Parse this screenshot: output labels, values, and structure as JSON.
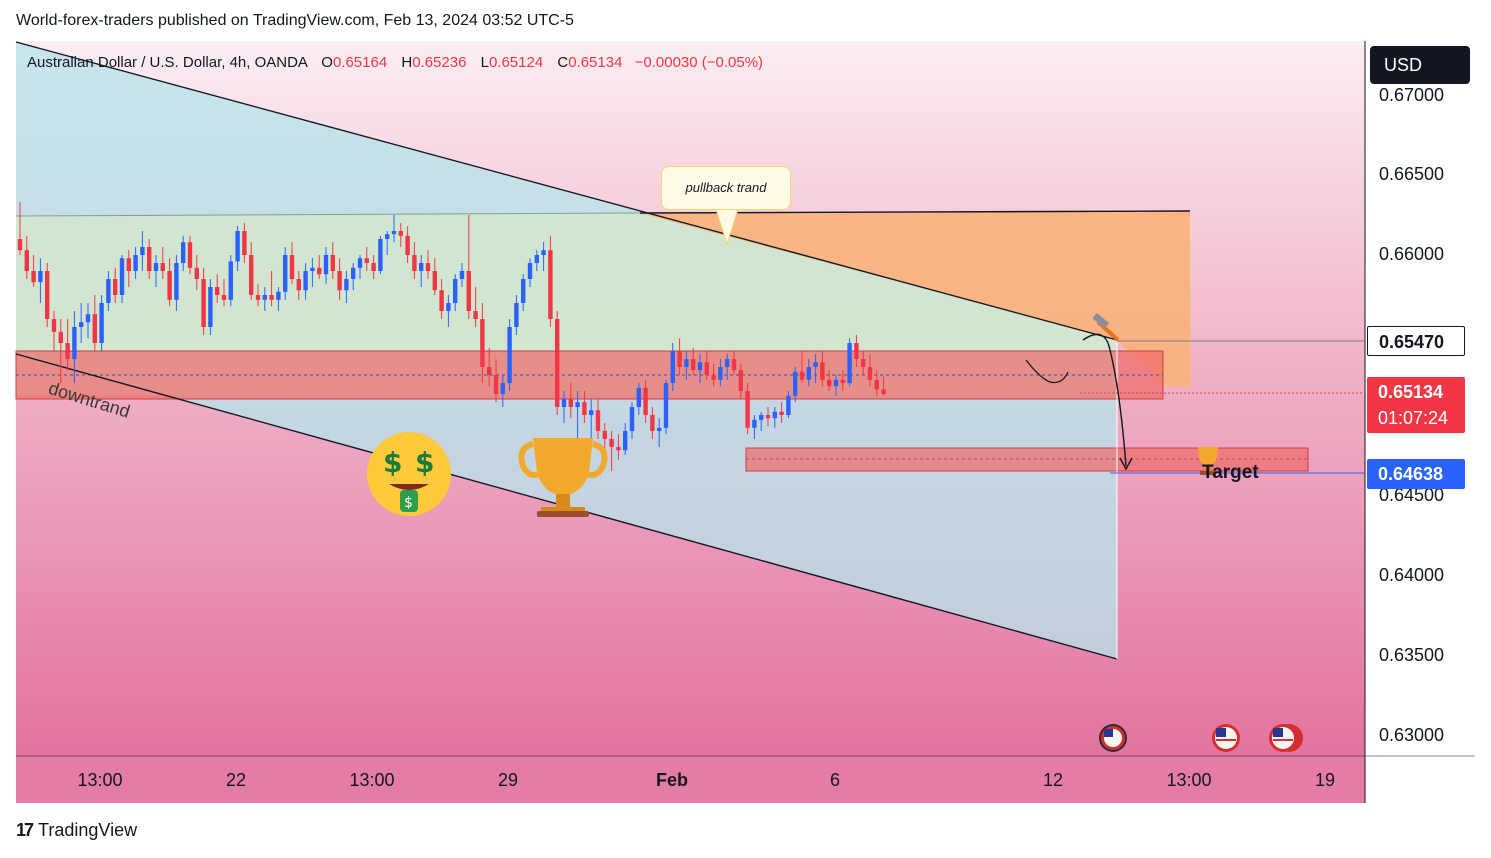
{
  "header": {
    "published_line": "World-forex-traders published on TradingView.com, Feb 13, 2024 03:52 UTC-5"
  },
  "legend": {
    "symbol": "Australian Dollar / U.S. Dollar, 4h, OANDA",
    "open_label": "O",
    "open": "0.65164",
    "high_label": "H",
    "high": "0.65236",
    "low_label": "L",
    "low": "0.65124",
    "close_label": "C",
    "close": "0.65134",
    "change": "−0.00030 (−0.05%)"
  },
  "currency_button": "USD",
  "price_axis": {
    "labels": [
      "0.67000",
      "0.66500",
      "0.66000",
      "0.64500",
      "0.64000",
      "0.63500",
      "0.63000"
    ],
    "tag_mark": {
      "value": "0.65470",
      "bg": "#ffffff",
      "fg": "#131722"
    },
    "tag_last": {
      "value": "0.65134",
      "countdown": "01:07:24",
      "bg": "#f23645",
      "fg": "#ffffff"
    },
    "tag_target": {
      "value": "0.64638",
      "bg": "#2962ff",
      "fg": "#ffffff"
    }
  },
  "time_axis": {
    "labels": [
      "13:00",
      "22",
      "13:00",
      "29",
      "Feb",
      "6",
      "12",
      "13:00",
      "19"
    ]
  },
  "annotations": {
    "callout": "pullback trand",
    "downtrend": "downtrand",
    "target": "Target"
  },
  "footer": {
    "logo": "17",
    "brand": "TradingView"
  },
  "colors": {
    "up": "#2962ff",
    "down": "#f23645",
    "background_pink": "#e882a6",
    "channel_fill": "#b2e6e8",
    "range_fill": "#cfe6c9",
    "orange_zone": "#f8b27c",
    "red_zone": "#f06e6e"
  },
  "chart_data": {
    "type": "candlestick",
    "symbol": "AUDUSD",
    "timeframe": "4h",
    "ylim": [
      0.6295,
      0.6715
    ],
    "candles": [
      {
        "o": 0.661,
        "h": 0.6633,
        "l": 0.66,
        "c": 0.6603
      },
      {
        "o": 0.6603,
        "h": 0.6612,
        "l": 0.6585,
        "c": 0.659
      },
      {
        "o": 0.659,
        "h": 0.66,
        "l": 0.658,
        "c": 0.6583
      },
      {
        "o": 0.6583,
        "h": 0.6598,
        "l": 0.657,
        "c": 0.659
      },
      {
        "o": 0.659,
        "h": 0.6595,
        "l": 0.6555,
        "c": 0.656
      },
      {
        "o": 0.656,
        "h": 0.6565,
        "l": 0.654,
        "c": 0.6552
      },
      {
        "o": 0.6552,
        "h": 0.656,
        "l": 0.652,
        "c": 0.6545
      },
      {
        "o": 0.6545,
        "h": 0.656,
        "l": 0.6528,
        "c": 0.6535
      },
      {
        "o": 0.6535,
        "h": 0.6565,
        "l": 0.652,
        "c": 0.6555
      },
      {
        "o": 0.6555,
        "h": 0.657,
        "l": 0.6545,
        "c": 0.6558
      },
      {
        "o": 0.6558,
        "h": 0.657,
        "l": 0.6548,
        "c": 0.6563
      },
      {
        "o": 0.6563,
        "h": 0.6575,
        "l": 0.654,
        "c": 0.6545
      },
      {
        "o": 0.6545,
        "h": 0.6575,
        "l": 0.654,
        "c": 0.657
      },
      {
        "o": 0.657,
        "h": 0.659,
        "l": 0.6565,
        "c": 0.6585
      },
      {
        "o": 0.6585,
        "h": 0.6592,
        "l": 0.657,
        "c": 0.6575
      },
      {
        "o": 0.6575,
        "h": 0.66,
        "l": 0.657,
        "c": 0.6598
      },
      {
        "o": 0.6598,
        "h": 0.6603,
        "l": 0.658,
        "c": 0.659
      },
      {
        "o": 0.659,
        "h": 0.6605,
        "l": 0.6585,
        "c": 0.66
      },
      {
        "o": 0.66,
        "h": 0.6615,
        "l": 0.659,
        "c": 0.6605
      },
      {
        "o": 0.6605,
        "h": 0.661,
        "l": 0.6585,
        "c": 0.659
      },
      {
        "o": 0.659,
        "h": 0.66,
        "l": 0.658,
        "c": 0.6595
      },
      {
        "o": 0.6595,
        "h": 0.6605,
        "l": 0.6585,
        "c": 0.659
      },
      {
        "o": 0.659,
        "h": 0.6598,
        "l": 0.6568,
        "c": 0.6572
      },
      {
        "o": 0.6572,
        "h": 0.66,
        "l": 0.6565,
        "c": 0.6595
      },
      {
        "o": 0.6595,
        "h": 0.6612,
        "l": 0.659,
        "c": 0.6608
      },
      {
        "o": 0.6608,
        "h": 0.6612,
        "l": 0.6588,
        "c": 0.6592
      },
      {
        "o": 0.6592,
        "h": 0.66,
        "l": 0.6578,
        "c": 0.6585
      },
      {
        "o": 0.6585,
        "h": 0.6592,
        "l": 0.655,
        "c": 0.6555
      },
      {
        "o": 0.6555,
        "h": 0.6585,
        "l": 0.655,
        "c": 0.658
      },
      {
        "o": 0.658,
        "h": 0.6588,
        "l": 0.657,
        "c": 0.6575
      },
      {
        "o": 0.6575,
        "h": 0.6585,
        "l": 0.6568,
        "c": 0.6572
      },
      {
        "o": 0.6572,
        "h": 0.66,
        "l": 0.6568,
        "c": 0.6596
      },
      {
        "o": 0.6596,
        "h": 0.6618,
        "l": 0.659,
        "c": 0.6615
      },
      {
        "o": 0.6615,
        "h": 0.662,
        "l": 0.6595,
        "c": 0.66
      },
      {
        "o": 0.66,
        "h": 0.6608,
        "l": 0.6572,
        "c": 0.6575
      },
      {
        "o": 0.6575,
        "h": 0.6582,
        "l": 0.6568,
        "c": 0.6572
      },
      {
        "o": 0.6572,
        "h": 0.658,
        "l": 0.6565,
        "c": 0.6575
      },
      {
        "o": 0.6575,
        "h": 0.659,
        "l": 0.6568,
        "c": 0.6572
      },
      {
        "o": 0.6572,
        "h": 0.658,
        "l": 0.6565,
        "c": 0.6577
      },
      {
        "o": 0.6577,
        "h": 0.6605,
        "l": 0.6572,
        "c": 0.66
      },
      {
        "o": 0.66,
        "h": 0.6608,
        "l": 0.6582,
        "c": 0.6585
      },
      {
        "o": 0.6585,
        "h": 0.659,
        "l": 0.6572,
        "c": 0.6578
      },
      {
        "o": 0.6578,
        "h": 0.6595,
        "l": 0.6572,
        "c": 0.659
      },
      {
        "o": 0.659,
        "h": 0.6598,
        "l": 0.658,
        "c": 0.6592
      },
      {
        "o": 0.6592,
        "h": 0.66,
        "l": 0.6585,
        "c": 0.6588
      },
      {
        "o": 0.6588,
        "h": 0.6605,
        "l": 0.6582,
        "c": 0.66
      },
      {
        "o": 0.66,
        "h": 0.6608,
        "l": 0.6585,
        "c": 0.659
      },
      {
        "o": 0.659,
        "h": 0.6598,
        "l": 0.6572,
        "c": 0.6578
      },
      {
        "o": 0.6578,
        "h": 0.659,
        "l": 0.657,
        "c": 0.6585
      },
      {
        "o": 0.6585,
        "h": 0.6595,
        "l": 0.6578,
        "c": 0.6592
      },
      {
        "o": 0.6592,
        "h": 0.66,
        "l": 0.6585,
        "c": 0.6598
      },
      {
        "o": 0.6598,
        "h": 0.6605,
        "l": 0.659,
        "c": 0.6595
      },
      {
        "o": 0.6595,
        "h": 0.66,
        "l": 0.6585,
        "c": 0.659
      },
      {
        "o": 0.659,
        "h": 0.6612,
        "l": 0.6588,
        "c": 0.661
      },
      {
        "o": 0.661,
        "h": 0.6615,
        "l": 0.66,
        "c": 0.6613
      },
      {
        "o": 0.6613,
        "h": 0.6625,
        "l": 0.6608,
        "c": 0.6615
      },
      {
        "o": 0.6615,
        "h": 0.662,
        "l": 0.6605,
        "c": 0.6612
      },
      {
        "o": 0.6612,
        "h": 0.6618,
        "l": 0.6595,
        "c": 0.66
      },
      {
        "o": 0.66,
        "h": 0.6608,
        "l": 0.6585,
        "c": 0.659
      },
      {
        "o": 0.659,
        "h": 0.66,
        "l": 0.658,
        "c": 0.6595
      },
      {
        "o": 0.6595,
        "h": 0.6603,
        "l": 0.6585,
        "c": 0.659
      },
      {
        "o": 0.659,
        "h": 0.6598,
        "l": 0.6575,
        "c": 0.6578
      },
      {
        "o": 0.6578,
        "h": 0.6585,
        "l": 0.656,
        "c": 0.6565
      },
      {
        "o": 0.6565,
        "h": 0.6575,
        "l": 0.6555,
        "c": 0.657
      },
      {
        "o": 0.657,
        "h": 0.6588,
        "l": 0.6565,
        "c": 0.6585
      },
      {
        "o": 0.6585,
        "h": 0.6595,
        "l": 0.658,
        "c": 0.659
      },
      {
        "o": 0.659,
        "h": 0.6625,
        "l": 0.656,
        "c": 0.6565
      },
      {
        "o": 0.6565,
        "h": 0.658,
        "l": 0.6555,
        "c": 0.656
      },
      {
        "o": 0.656,
        "h": 0.657,
        "l": 0.652,
        "c": 0.653
      },
      {
        "o": 0.653,
        "h": 0.6542,
        "l": 0.6518,
        "c": 0.6525
      },
      {
        "o": 0.6525,
        "h": 0.6535,
        "l": 0.6508,
        "c": 0.6513
      },
      {
        "o": 0.6513,
        "h": 0.6525,
        "l": 0.6505,
        "c": 0.652
      },
      {
        "o": 0.652,
        "h": 0.656,
        "l": 0.6515,
        "c": 0.6555
      },
      {
        "o": 0.6555,
        "h": 0.6575,
        "l": 0.655,
        "c": 0.657
      },
      {
        "o": 0.657,
        "h": 0.6588,
        "l": 0.6565,
        "c": 0.6585
      },
      {
        "o": 0.6585,
        "h": 0.6598,
        "l": 0.658,
        "c": 0.6595
      },
      {
        "o": 0.6595,
        "h": 0.6603,
        "l": 0.659,
        "c": 0.66
      },
      {
        "o": 0.66,
        "h": 0.6608,
        "l": 0.659,
        "c": 0.6603
      },
      {
        "o": 0.6603,
        "h": 0.6612,
        "l": 0.6555,
        "c": 0.656
      },
      {
        "o": 0.656,
        "h": 0.6565,
        "l": 0.65,
        "c": 0.6505
      },
      {
        "o": 0.6505,
        "h": 0.6515,
        "l": 0.6495,
        "c": 0.651
      },
      {
        "o": 0.651,
        "h": 0.652,
        "l": 0.6498,
        "c": 0.6505
      },
      {
        "o": 0.6505,
        "h": 0.6515,
        "l": 0.648,
        "c": 0.6508
      },
      {
        "o": 0.6508,
        "h": 0.6515,
        "l": 0.6495,
        "c": 0.65
      },
      {
        "o": 0.65,
        "h": 0.651,
        "l": 0.6485,
        "c": 0.6503
      },
      {
        "o": 0.6503,
        "h": 0.651,
        "l": 0.6485,
        "c": 0.649
      },
      {
        "o": 0.649,
        "h": 0.6495,
        "l": 0.6478,
        "c": 0.6485
      },
      {
        "o": 0.6485,
        "h": 0.649,
        "l": 0.6465,
        "c": 0.648
      },
      {
        "o": 0.648,
        "h": 0.6488,
        "l": 0.6472,
        "c": 0.6478
      },
      {
        "o": 0.6478,
        "h": 0.6495,
        "l": 0.6475,
        "c": 0.649
      },
      {
        "o": 0.649,
        "h": 0.6508,
        "l": 0.6485,
        "c": 0.6505
      },
      {
        "o": 0.6505,
        "h": 0.652,
        "l": 0.65,
        "c": 0.6517
      },
      {
        "o": 0.6517,
        "h": 0.6522,
        "l": 0.6495,
        "c": 0.65
      },
      {
        "o": 0.65,
        "h": 0.6505,
        "l": 0.6485,
        "c": 0.649
      },
      {
        "o": 0.649,
        "h": 0.6498,
        "l": 0.648,
        "c": 0.6492
      },
      {
        "o": 0.6492,
        "h": 0.6522,
        "l": 0.6488,
        "c": 0.652
      },
      {
        "o": 0.652,
        "h": 0.6545,
        "l": 0.6515,
        "c": 0.654
      },
      {
        "o": 0.654,
        "h": 0.6548,
        "l": 0.6525,
        "c": 0.653
      },
      {
        "o": 0.653,
        "h": 0.654,
        "l": 0.6522,
        "c": 0.6535
      },
      {
        "o": 0.6535,
        "h": 0.6542,
        "l": 0.6525,
        "c": 0.6528
      },
      {
        "o": 0.6528,
        "h": 0.6538,
        "l": 0.652,
        "c": 0.6533
      },
      {
        "o": 0.6533,
        "h": 0.654,
        "l": 0.6522,
        "c": 0.6525
      },
      {
        "o": 0.6525,
        "h": 0.6532,
        "l": 0.6518,
        "c": 0.6522
      },
      {
        "o": 0.6522,
        "h": 0.6535,
        "l": 0.6518,
        "c": 0.653
      },
      {
        "o": 0.653,
        "h": 0.6538,
        "l": 0.6522,
        "c": 0.6535
      },
      {
        "o": 0.6535,
        "h": 0.654,
        "l": 0.6525,
        "c": 0.6528
      },
      {
        "o": 0.6528,
        "h": 0.6532,
        "l": 0.651,
        "c": 0.6515
      },
      {
        "o": 0.6515,
        "h": 0.652,
        "l": 0.6488,
        "c": 0.6492
      },
      {
        "o": 0.6492,
        "h": 0.65,
        "l": 0.6485,
        "c": 0.6497
      },
      {
        "o": 0.6497,
        "h": 0.6502,
        "l": 0.649,
        "c": 0.65
      },
      {
        "o": 0.65,
        "h": 0.6505,
        "l": 0.6493,
        "c": 0.6498
      },
      {
        "o": 0.6498,
        "h": 0.6505,
        "l": 0.6492,
        "c": 0.6502
      },
      {
        "o": 0.6502,
        "h": 0.6508,
        "l": 0.6495,
        "c": 0.65
      },
      {
        "o": 0.65,
        "h": 0.6515,
        "l": 0.6498,
        "c": 0.6512
      },
      {
        "o": 0.6512,
        "h": 0.653,
        "l": 0.6508,
        "c": 0.6527
      },
      {
        "o": 0.6527,
        "h": 0.654,
        "l": 0.652,
        "c": 0.6522
      },
      {
        "o": 0.6522,
        "h": 0.6535,
        "l": 0.6518,
        "c": 0.653
      },
      {
        "o": 0.653,
        "h": 0.6538,
        "l": 0.652,
        "c": 0.6533
      },
      {
        "o": 0.6533,
        "h": 0.654,
        "l": 0.6518,
        "c": 0.6522
      },
      {
        "o": 0.6522,
        "h": 0.6528,
        "l": 0.6515,
        "c": 0.6518
      },
      {
        "o": 0.6518,
        "h": 0.6525,
        "l": 0.6512,
        "c": 0.6522
      },
      {
        "o": 0.6522,
        "h": 0.6528,
        "l": 0.6515,
        "c": 0.652
      },
      {
        "o": 0.652,
        "h": 0.6548,
        "l": 0.6518,
        "c": 0.6545
      },
      {
        "o": 0.6545,
        "h": 0.655,
        "l": 0.653,
        "c": 0.6535
      },
      {
        "o": 0.6535,
        "h": 0.654,
        "l": 0.6525,
        "c": 0.653
      },
      {
        "o": 0.653,
        "h": 0.6538,
        "l": 0.6518,
        "c": 0.6522
      },
      {
        "o": 0.6522,
        "h": 0.6528,
        "l": 0.6512,
        "c": 0.6516
      },
      {
        "o": 0.6516,
        "h": 0.6524,
        "l": 0.6512,
        "c": 0.6513
      }
    ],
    "levels": {
      "resistance": 0.6627,
      "zone_top": 0.6545,
      "zone_bottom": 0.6515,
      "target_zone_top": 0.6475,
      "target_zone_bottom": 0.646,
      "target": 0.64638,
      "mark": 0.6547,
      "last": 0.65134
    }
  }
}
